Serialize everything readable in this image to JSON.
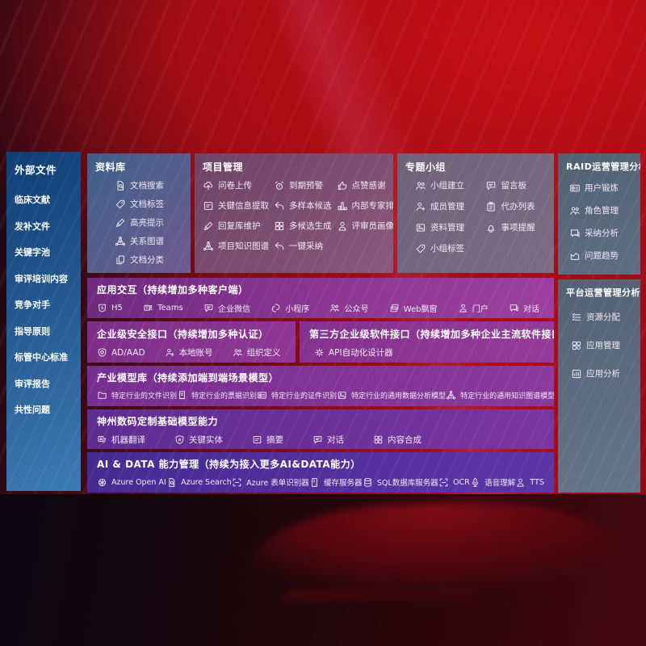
{
  "colors": {
    "background_red": "#b30d16",
    "sidebar_blue": "#24588f",
    "steel_panel": "#5f6d82",
    "purple_accent": "#8d3794",
    "deep_purple": "#5c35a6"
  },
  "sidebar": {
    "title": "外部文件",
    "items": [
      "临床文献",
      "发补文件",
      "关键字池",
      "审评培训内容",
      "竞争对手",
      "指导原则",
      "标管中心标准",
      "审评报告",
      "共性问题"
    ]
  },
  "panels": {
    "library": {
      "title": "资料库",
      "items": [
        {
          "label": "文档搜索",
          "icon": "doc-search"
        },
        {
          "label": "文档标签",
          "icon": "tag"
        },
        {
          "label": "高亮提示",
          "icon": "pencil"
        },
        {
          "label": "关系图谱",
          "icon": "knowledge-graph"
        },
        {
          "label": "文档分类",
          "icon": "doc-copy"
        }
      ]
    },
    "project": {
      "title": "项目管理",
      "items": [
        {
          "label": "问卷上传",
          "icon": "cloud-upload"
        },
        {
          "label": "到期预警",
          "icon": "alarm"
        },
        {
          "label": "点赞感谢",
          "icon": "thumbs-up"
        },
        {
          "label": "关键信息提取",
          "icon": "doc-lines"
        },
        {
          "label": "多样本候选",
          "icon": "reply-arrow"
        },
        {
          "label": "内部专家排名",
          "icon": "ranking"
        },
        {
          "label": "回复库维护",
          "icon": "pencil"
        },
        {
          "label": "多候选生成",
          "icon": "puzzle"
        },
        {
          "label": "评审员画像",
          "icon": "person"
        },
        {
          "label": "项目知识图谱",
          "icon": "knowledge-graph"
        },
        {
          "label": "一键采纳",
          "icon": "reply-arrow"
        }
      ]
    },
    "groups": {
      "title": "专题小组",
      "items": [
        {
          "label": "小组建立",
          "icon": "people"
        },
        {
          "label": "留言板",
          "icon": "chat"
        },
        {
          "label": "成员管理",
          "icon": "person-add"
        },
        {
          "label": "代办列表",
          "icon": "clipboard"
        },
        {
          "label": "资料管理",
          "icon": "image-doc"
        },
        {
          "label": "事项提醒",
          "icon": "bell"
        },
        {
          "label": "小组标签",
          "icon": "tag"
        }
      ]
    },
    "raid": {
      "title": "RAID运营管理分析",
      "items": [
        {
          "label": "用户锻炼",
          "icon": "user-card"
        },
        {
          "label": "角色管理",
          "icon": "people"
        },
        {
          "label": "采纳分析",
          "icon": "chat-qa"
        },
        {
          "label": "问题趋势",
          "icon": "trend-chart"
        }
      ]
    },
    "platform": {
      "title": "平台运营管理分析",
      "items": [
        {
          "label": "资源分配",
          "icon": "list"
        },
        {
          "label": "应用管理",
          "icon": "app-grid"
        },
        {
          "label": "应用分析",
          "icon": "app-chart"
        }
      ]
    },
    "interaction": {
      "title": "应用交互（持续增加多种客户端）",
      "items": [
        {
          "label": "H5",
          "icon": "h5"
        },
        {
          "label": "Teams",
          "icon": "teams"
        },
        {
          "label": "企业微信",
          "icon": "chat"
        },
        {
          "label": "小程序",
          "icon": "mini-program"
        },
        {
          "label": "公众号",
          "icon": "people"
        },
        {
          "label": "Web飘窗",
          "icon": "web-window"
        },
        {
          "label": "门户",
          "icon": "person"
        },
        {
          "label": "对话",
          "icon": "chat-qa"
        }
      ]
    },
    "security": {
      "title": "企业级安全接口（持续增加多种认证）",
      "items": [
        {
          "label": "AD/AAD",
          "icon": "shield"
        },
        {
          "label": "本地账号",
          "icon": "person-add"
        },
        {
          "label": "组织定义",
          "icon": "people"
        }
      ]
    },
    "thirdparty": {
      "title": "第三方企业级软件接口（持续增加多种企业主流软件接口）",
      "items": [
        {
          "label": "API自动化设计器",
          "icon": "gear"
        }
      ]
    },
    "models": {
      "title": "产业模型库（持续添加端到端场景模型）",
      "items": [
        {
          "label": "特定行业的文件识别",
          "icon": "folder"
        },
        {
          "label": "特定行业的票据识别",
          "icon": "receipt"
        },
        {
          "label": "特定行业的证件识别",
          "icon": "user-card"
        },
        {
          "label": "特定行业的通用数据分析模型",
          "icon": "image-doc"
        },
        {
          "label": "特定行业的通用知识图谱模型",
          "icon": "knowledge-graph"
        }
      ]
    },
    "base_models": {
      "title": "神州数码定制基础模型能力",
      "items": [
        {
          "label": "机器翻译",
          "icon": "translate"
        },
        {
          "label": "关键实体",
          "icon": "shield-a"
        },
        {
          "label": "摘要",
          "icon": "doc-lines"
        },
        {
          "label": "对话",
          "icon": "chat"
        },
        {
          "label": "内容合成",
          "icon": "puzzle"
        }
      ]
    },
    "ai_data": {
      "title": "AI & DATA 能力管理（持续为接入更多AI&DATA能力）",
      "items": [
        {
          "label": "Azure Open AI",
          "icon": "openai"
        },
        {
          "label": "Azure Search",
          "icon": "doc-search"
        },
        {
          "label": "Azure 表单识别器",
          "icon": "brackets"
        },
        {
          "label": "缓存服务器",
          "icon": "server"
        },
        {
          "label": "SQL数据库服务器",
          "icon": "database"
        },
        {
          "label": "OCR",
          "icon": "brackets"
        },
        {
          "label": "语音理解",
          "icon": "mic"
        },
        {
          "label": "TTS",
          "icon": "person"
        }
      ]
    }
  }
}
